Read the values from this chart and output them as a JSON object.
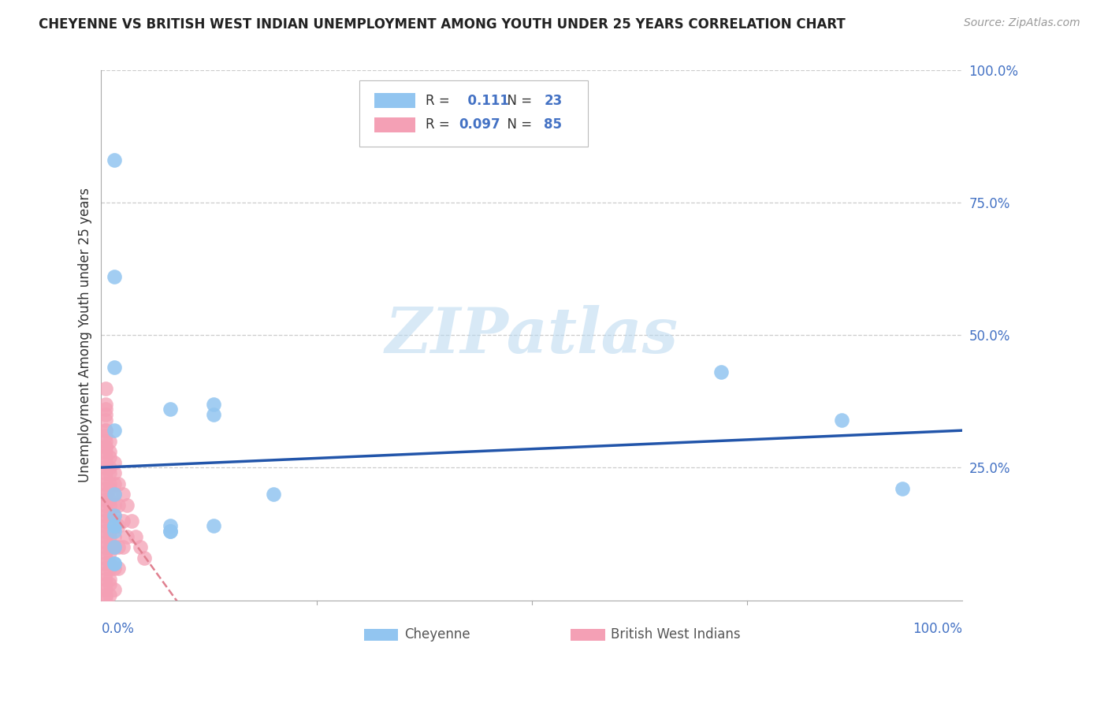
{
  "title": "CHEYENNE VS BRITISH WEST INDIAN UNEMPLOYMENT AMONG YOUTH UNDER 25 YEARS CORRELATION CHART",
  "source": "Source: ZipAtlas.com",
  "ylabel": "Unemployment Among Youth under 25 years",
  "xlim": [
    0,
    1
  ],
  "ylim": [
    0,
    1
  ],
  "ytick_labels_right": [
    "25.0%",
    "50.0%",
    "75.0%",
    "100.0%"
  ],
  "ytick_vals": [
    0.25,
    0.5,
    0.75,
    1.0
  ],
  "xtick_labels": [
    "0.0%",
    "100.0%"
  ],
  "xtick_vals": [
    0.0,
    1.0
  ],
  "cheyenne_color": "#92C5F0",
  "bwi_color": "#F4A0B5",
  "cheyenne_line_color": "#2255AA",
  "bwi_line_color": "#E08090",
  "cheyenne_R": 0.111,
  "cheyenne_N": 23,
  "bwi_R": 0.097,
  "bwi_N": 85,
  "watermark": "ZIPatlas",
  "cheyenne_x": [
    0.015,
    0.015,
    0.015,
    0.015,
    0.015,
    0.015,
    0.08,
    0.13,
    0.2,
    0.72,
    0.86,
    0.93,
    0.015,
    0.015,
    0.015,
    0.08,
    0.08,
    0.08,
    0.13,
    0.13,
    0.015,
    0.015,
    0.015
  ],
  "cheyenne_y": [
    0.83,
    0.61,
    0.44,
    0.32,
    0.2,
    0.16,
    0.14,
    0.35,
    0.2,
    0.43,
    0.34,
    0.21,
    0.13,
    0.1,
    0.07,
    0.13,
    0.13,
    0.36,
    0.37,
    0.14,
    0.14,
    0.14,
    0.07
  ],
  "bwi_x": [
    0.005,
    0.005,
    0.005,
    0.005,
    0.005,
    0.005,
    0.005,
    0.005,
    0.005,
    0.005,
    0.005,
    0.005,
    0.005,
    0.005,
    0.005,
    0.005,
    0.005,
    0.005,
    0.005,
    0.005,
    0.005,
    0.005,
    0.005,
    0.005,
    0.005,
    0.005,
    0.005,
    0.005,
    0.005,
    0.005,
    0.005,
    0.005,
    0.005,
    0.005,
    0.005,
    0.005,
    0.005,
    0.005,
    0.005,
    0.005,
    0.01,
    0.01,
    0.01,
    0.01,
    0.01,
    0.01,
    0.01,
    0.01,
    0.01,
    0.01,
    0.01,
    0.01,
    0.01,
    0.01,
    0.01,
    0.01,
    0.01,
    0.01,
    0.01,
    0.01,
    0.015,
    0.015,
    0.015,
    0.015,
    0.015,
    0.015,
    0.015,
    0.015,
    0.015,
    0.015,
    0.015,
    0.02,
    0.02,
    0.02,
    0.02,
    0.02,
    0.025,
    0.025,
    0.025,
    0.03,
    0.03,
    0.035,
    0.04,
    0.045,
    0.05
  ],
  "bwi_y": [
    0.4,
    0.37,
    0.35,
    0.32,
    0.3,
    0.28,
    0.26,
    0.24,
    0.22,
    0.2,
    0.18,
    0.16,
    0.14,
    0.12,
    0.1,
    0.08,
    0.06,
    0.04,
    0.02,
    0.005,
    0.36,
    0.34,
    0.31,
    0.29,
    0.27,
    0.25,
    0.23,
    0.21,
    0.19,
    0.17,
    0.15,
    0.13,
    0.11,
    0.09,
    0.07,
    0.05,
    0.03,
    0.01,
    0.32,
    0.29,
    0.3,
    0.27,
    0.24,
    0.21,
    0.18,
    0.15,
    0.12,
    0.09,
    0.06,
    0.03,
    0.28,
    0.25,
    0.22,
    0.19,
    0.16,
    0.13,
    0.1,
    0.07,
    0.04,
    0.01,
    0.26,
    0.22,
    0.18,
    0.14,
    0.1,
    0.06,
    0.02,
    0.24,
    0.2,
    0.16,
    0.12,
    0.22,
    0.18,
    0.14,
    0.1,
    0.06,
    0.2,
    0.15,
    0.1,
    0.18,
    0.12,
    0.15,
    0.12,
    0.1,
    0.08
  ]
}
